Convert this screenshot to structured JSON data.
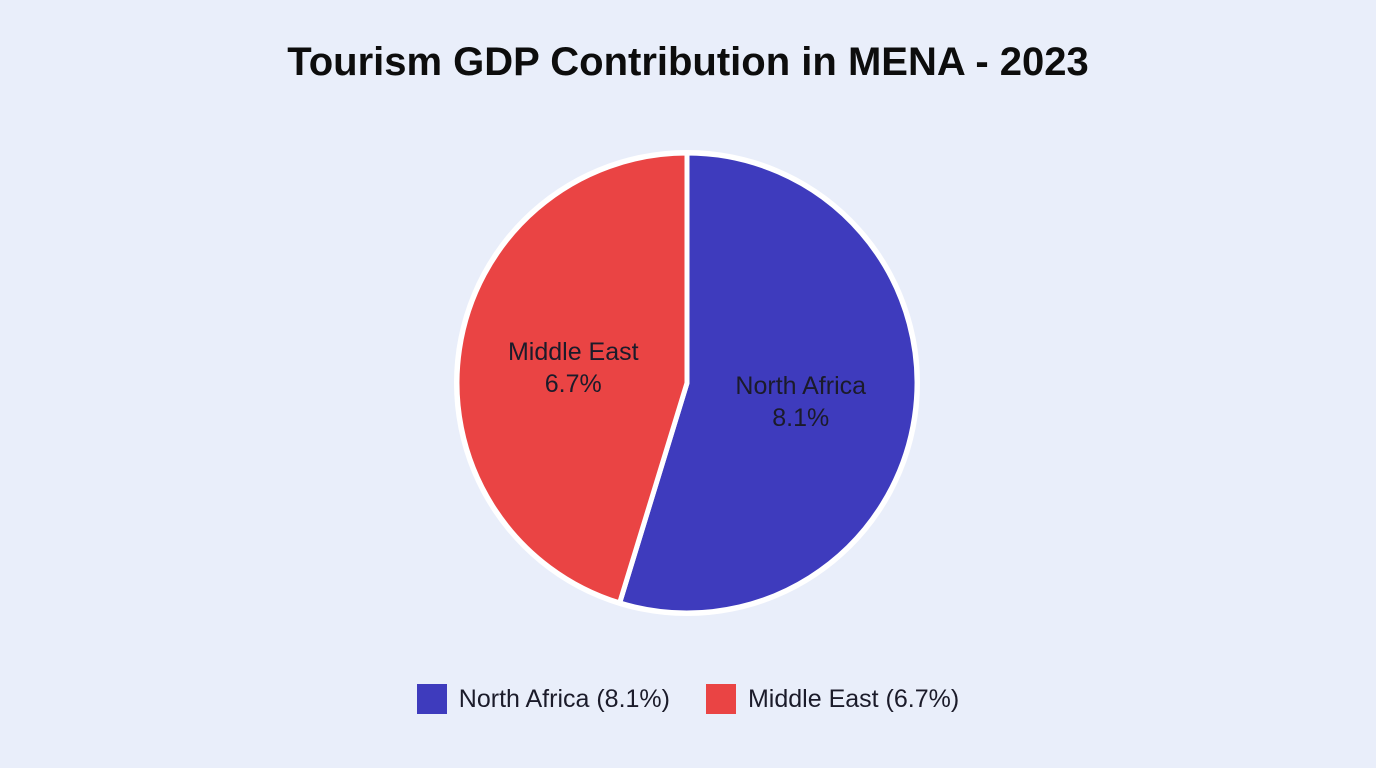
{
  "chart_data": {
    "type": "pie",
    "title": "Tourism GDP Contribution in MENA - 2023",
    "slices": [
      {
        "name": "North Africa",
        "value": 8.1,
        "value_label": "8.1%",
        "legend_label": "North Africa (8.1%)",
        "color": "#3e3bbd"
      },
      {
        "name": "Middle East",
        "value": 6.7,
        "value_label": "6.7%",
        "legend_label": "Middle East (6.7%)",
        "color": "#ea4444"
      }
    ],
    "legend_position": "bottom"
  }
}
